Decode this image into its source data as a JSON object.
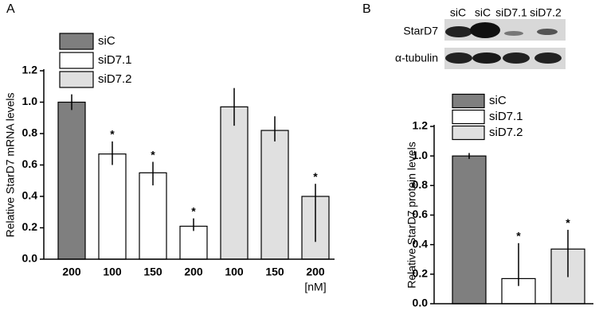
{
  "panel_labels": [
    "A",
    "B"
  ],
  "blot": {
    "lanes": [
      "siC",
      "siC",
      "siD7.1",
      "siD7.2"
    ],
    "rows": [
      "StarD7",
      "α-tubulin"
    ]
  },
  "chart_data": [
    {
      "type": "bar",
      "y_label": "Relative StarD7 mRNA levels",
      "categories": [
        "200",
        "100",
        "150",
        "200",
        "100",
        "150",
        "200"
      ],
      "x_unit": "[nM]",
      "ylim": [
        0,
        1.2
      ],
      "yticks": [
        {
          "value": 0,
          "label": "0.0"
        },
        0.2,
        0.4,
        0.6,
        0.8,
        {
          "value": 1,
          "label": "1.0"
        },
        1.2
      ],
      "series": [
        {
          "name": "siC",
          "color": "#7f7f7f",
          "values": [
            1.0,
            null,
            null,
            null,
            null,
            null,
            null
          ],
          "error_minus": [
            0.05,
            null,
            null,
            null,
            null,
            null,
            null
          ],
          "error_plus": [
            0.05,
            null,
            null,
            null,
            null,
            null,
            null
          ]
        },
        {
          "name": "siD7.1",
          "color": "#ffffff",
          "values": [
            null,
            0.67,
            0.55,
            0.21,
            null,
            null,
            null
          ],
          "error_minus": [
            null,
            0.07,
            0.08,
            0.03,
            null,
            null,
            null
          ],
          "error_plus": [
            null,
            0.08,
            0.07,
            0.05,
            null,
            null,
            null
          ]
        },
        {
          "name": "siD7.2",
          "color": "#e0e0e0",
          "values": [
            null,
            null,
            null,
            null,
            0.97,
            0.82,
            0.4
          ],
          "error_minus": [
            null,
            null,
            null,
            null,
            0.12,
            0.07,
            0.29
          ],
          "error_plus": [
            null,
            null,
            null,
            null,
            0.12,
            0.09,
            0.08
          ]
        }
      ],
      "significance": [
        null,
        "*",
        "*",
        "*",
        null,
        null,
        "*"
      ]
    },
    {
      "type": "bar",
      "y_label": "Relative StarD7 protein levels",
      "categories": [
        null,
        null,
        null
      ],
      "ylim": [
        0,
        1.2
      ],
      "yticks": [
        {
          "value": 0,
          "label": "0.0"
        },
        0.2,
        0.4,
        0.6,
        0.8,
        {
          "value": 1,
          "label": "1.0"
        },
        1.2
      ],
      "series": [
        {
          "name": "siC",
          "color": "#7f7f7f",
          "values": [
            1.0,
            null,
            null
          ],
          "error_minus": [
            0.02,
            null,
            null
          ],
          "error_plus": [
            0.02,
            null,
            null
          ]
        },
        {
          "name": "siD7.1",
          "color": "#ffffff",
          "values": [
            null,
            0.17,
            null
          ],
          "error_minus": [
            null,
            0.05,
            null
          ],
          "error_plus": [
            null,
            0.24,
            null
          ]
        },
        {
          "name": "siD7.2",
          "color": "#e0e0e0",
          "values": [
            null,
            null,
            0.37
          ],
          "error_minus": [
            null,
            null,
            0.19
          ],
          "error_plus": [
            null,
            null,
            0.13
          ]
        }
      ],
      "significance": [
        null,
        "*",
        "*"
      ]
    }
  ]
}
